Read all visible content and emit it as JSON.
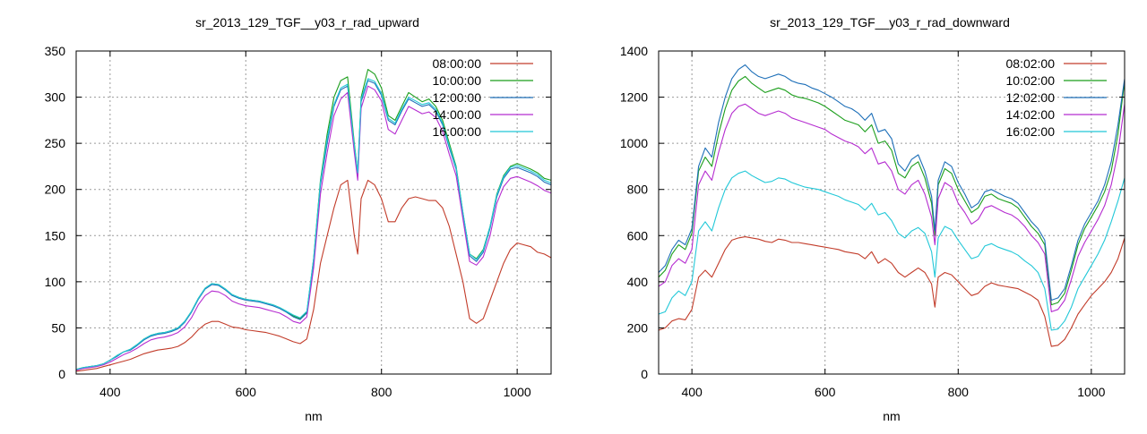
{
  "chart_data": [
    {
      "type": "line",
      "title": "sr_2013_129_TGF__y03_r_rad_upward",
      "xlabel": "nm",
      "ylabel": "",
      "xlim": [
        350,
        1050
      ],
      "ylim": [
        0,
        350
      ],
      "xticks": [
        400,
        600,
        800,
        1000
      ],
      "yticks": [
        0,
        50,
        100,
        150,
        200,
        250,
        300,
        350
      ],
      "grid": true,
      "legend": "top-right",
      "x": [
        350,
        360,
        370,
        380,
        390,
        400,
        410,
        420,
        430,
        440,
        450,
        460,
        470,
        480,
        490,
        500,
        510,
        520,
        530,
        540,
        550,
        560,
        570,
        580,
        590,
        600,
        610,
        620,
        630,
        640,
        650,
        660,
        670,
        680,
        690,
        700,
        710,
        720,
        730,
        740,
        750,
        760,
        765,
        770,
        780,
        790,
        800,
        810,
        820,
        830,
        840,
        850,
        860,
        870,
        880,
        890,
        900,
        910,
        920,
        930,
        940,
        950,
        960,
        970,
        980,
        990,
        1000,
        1010,
        1020,
        1030,
        1040,
        1050
      ],
      "series": [
        {
          "name": "08:00:00",
          "color": "#c23c2a",
          "values": [
            3,
            4,
            5,
            6,
            8,
            10,
            12,
            14,
            16,
            19,
            22,
            24,
            26,
            27,
            28,
            30,
            34,
            40,
            48,
            54,
            57,
            57,
            54,
            51,
            50,
            48,
            47,
            46,
            45,
            43,
            41,
            38,
            35,
            33,
            38,
            70,
            120,
            150,
            180,
            205,
            210,
            150,
            130,
            190,
            210,
            205,
            190,
            165,
            165,
            180,
            190,
            192,
            190,
            188,
            188,
            180,
            160,
            130,
            100,
            60,
            55,
            60,
            80,
            100,
            120,
            135,
            142,
            140,
            138,
            132,
            130,
            126
          ]
        },
        {
          "name": "10:00:00",
          "color": "#1b9e1b",
          "values": [
            5,
            7,
            8,
            9,
            11,
            15,
            20,
            24,
            27,
            32,
            38,
            42,
            44,
            45,
            47,
            50,
            57,
            68,
            82,
            93,
            98,
            97,
            92,
            86,
            83,
            81,
            80,
            79,
            77,
            75,
            72,
            68,
            63,
            60,
            67,
            125,
            210,
            260,
            300,
            318,
            322,
            250,
            218,
            300,
            330,
            325,
            310,
            280,
            275,
            290,
            305,
            300,
            295,
            298,
            290,
            275,
            250,
            225,
            175,
            130,
            125,
            135,
            160,
            195,
            215,
            225,
            228,
            225,
            222,
            218,
            212,
            210
          ]
        },
        {
          "name": "12:00:00",
          "color": "#1d6fb8",
          "values": [
            5,
            6,
            8,
            9,
            11,
            15,
            19,
            24,
            26,
            31,
            37,
            41,
            43,
            44,
            46,
            49,
            56,
            67,
            81,
            92,
            97,
            96,
            91,
            85,
            82,
            80,
            79,
            78,
            76,
            74,
            71,
            67,
            62,
            59,
            66,
            122,
            205,
            250,
            290,
            308,
            312,
            245,
            215,
            295,
            318,
            315,
            302,
            275,
            270,
            285,
            298,
            294,
            290,
            292,
            285,
            270,
            245,
            222,
            173,
            128,
            122,
            132,
            158,
            192,
            212,
            222,
            224,
            221,
            218,
            214,
            208,
            205
          ]
        },
        {
          "name": "14:00:00",
          "color": "#b52cd0",
          "values": [
            4,
            6,
            7,
            8,
            10,
            13,
            17,
            21,
            24,
            28,
            33,
            37,
            39,
            40,
            42,
            45,
            51,
            61,
            75,
            85,
            90,
            89,
            85,
            79,
            76,
            74,
            73,
            72,
            70,
            68,
            66,
            62,
            57,
            55,
            62,
            115,
            195,
            240,
            280,
            298,
            305,
            240,
            210,
            288,
            312,
            308,
            296,
            265,
            260,
            275,
            290,
            286,
            282,
            284,
            278,
            263,
            238,
            215,
            168,
            122,
            118,
            127,
            150,
            185,
            203,
            212,
            214,
            211,
            208,
            204,
            199,
            196
          ]
        },
        {
          "name": "16:00:00",
          "color": "#22c8d8",
          "values": [
            5,
            7,
            8,
            9,
            11,
            15,
            20,
            24,
            27,
            32,
            38,
            42,
            44,
            45,
            47,
            50,
            57,
            68,
            82,
            93,
            98,
            97,
            92,
            86,
            83,
            81,
            80,
            79,
            77,
            75,
            72,
            68,
            64,
            61,
            68,
            125,
            208,
            255,
            292,
            310,
            314,
            248,
            218,
            298,
            320,
            317,
            304,
            277,
            272,
            287,
            300,
            296,
            292,
            294,
            287,
            272,
            247,
            224,
            175,
            130,
            124,
            134,
            160,
            194,
            214,
            224,
            226,
            223,
            220,
            216,
            210,
            207
          ]
        }
      ]
    },
    {
      "type": "line",
      "title": "sr_2013_129_TGF__y03_r_rad_downward",
      "xlabel": "nm",
      "ylabel": "",
      "xlim": [
        350,
        1050
      ],
      "ylim": [
        0,
        1400
      ],
      "xticks": [
        400,
        600,
        800,
        1000
      ],
      "yticks": [
        0,
        200,
        400,
        600,
        800,
        1000,
        1200,
        1400
      ],
      "grid": true,
      "legend": "top-right",
      "x": [
        350,
        360,
        370,
        380,
        390,
        400,
        410,
        420,
        430,
        440,
        450,
        460,
        470,
        480,
        490,
        500,
        510,
        520,
        530,
        540,
        550,
        560,
        570,
        580,
        590,
        600,
        610,
        620,
        630,
        640,
        650,
        660,
        670,
        680,
        690,
        700,
        710,
        720,
        730,
        740,
        750,
        760,
        765,
        770,
        780,
        790,
        800,
        810,
        820,
        830,
        840,
        850,
        860,
        870,
        880,
        890,
        900,
        910,
        920,
        930,
        940,
        950,
        960,
        970,
        980,
        990,
        1000,
        1010,
        1020,
        1030,
        1040,
        1050
      ],
      "series": [
        {
          "name": "08:02:00",
          "color": "#c23c2a",
          "values": [
            190,
            200,
            230,
            240,
            235,
            280,
            420,
            450,
            420,
            480,
            540,
            580,
            590,
            595,
            590,
            585,
            575,
            570,
            585,
            580,
            570,
            570,
            565,
            560,
            555,
            550,
            545,
            540,
            530,
            525,
            520,
            500,
            530,
            480,
            500,
            480,
            440,
            420,
            440,
            460,
            440,
            390,
            290,
            420,
            440,
            430,
            400,
            370,
            340,
            350,
            380,
            395,
            385,
            380,
            375,
            370,
            355,
            340,
            320,
            250,
            120,
            125,
            150,
            200,
            260,
            300,
            340,
            370,
            400,
            440,
            500,
            590
          ]
        },
        {
          "name": "10:02:00",
          "color": "#1b9e1b",
          "values": [
            420,
            450,
            520,
            560,
            540,
            610,
            880,
            940,
            900,
            1040,
            1150,
            1230,
            1270,
            1290,
            1260,
            1240,
            1220,
            1230,
            1240,
            1230,
            1210,
            1200,
            1195,
            1185,
            1175,
            1160,
            1140,
            1120,
            1100,
            1090,
            1080,
            1050,
            1080,
            1000,
            1010,
            970,
            870,
            850,
            900,
            920,
            850,
            740,
            600,
            820,
            890,
            870,
            800,
            750,
            700,
            720,
            770,
            780,
            760,
            750,
            740,
            720,
            680,
            640,
            610,
            560,
            300,
            310,
            350,
            450,
            560,
            630,
            680,
            730,
            790,
            880,
            1040,
            1270
          ]
        },
        {
          "name": "12:02:00",
          "color": "#1d6fb8",
          "values": [
            440,
            470,
            540,
            580,
            560,
            630,
            900,
            980,
            940,
            1090,
            1200,
            1280,
            1320,
            1340,
            1310,
            1290,
            1280,
            1290,
            1300,
            1290,
            1270,
            1260,
            1255,
            1240,
            1230,
            1215,
            1200,
            1180,
            1160,
            1150,
            1130,
            1100,
            1130,
            1050,
            1060,
            1020,
            910,
            880,
            930,
            950,
            880,
            770,
            620,
            840,
            920,
            900,
            830,
            780,
            720,
            740,
            790,
            800,
            785,
            770,
            760,
            740,
            700,
            660,
            630,
            580,
            320,
            330,
            370,
            470,
            580,
            650,
            700,
            750,
            820,
            920,
            1080,
            1280
          ]
        },
        {
          "name": "14:02:00",
          "color": "#b52cd0",
          "values": [
            380,
            400,
            470,
            500,
            480,
            540,
            820,
            880,
            840,
            960,
            1060,
            1130,
            1160,
            1170,
            1150,
            1130,
            1120,
            1130,
            1140,
            1130,
            1110,
            1100,
            1090,
            1080,
            1070,
            1060,
            1040,
            1025,
            1010,
            1000,
            985,
            955,
            980,
            910,
            920,
            880,
            800,
            780,
            820,
            840,
            780,
            680,
            560,
            760,
            830,
            810,
            740,
            700,
            650,
            670,
            720,
            730,
            715,
            700,
            690,
            670,
            640,
            600,
            570,
            520,
            270,
            280,
            320,
            410,
            510,
            570,
            620,
            670,
            730,
            820,
            960,
            1170
          ]
        },
        {
          "name": "16:02:00",
          "color": "#22c8d8",
          "values": [
            260,
            270,
            330,
            360,
            340,
            400,
            620,
            660,
            620,
            720,
            800,
            850,
            870,
            880,
            860,
            845,
            830,
            835,
            850,
            845,
            830,
            820,
            810,
            805,
            800,
            790,
            780,
            770,
            755,
            745,
            735,
            710,
            740,
            690,
            700,
            665,
            610,
            590,
            620,
            635,
            610,
            530,
            420,
            590,
            640,
            625,
            580,
            540,
            500,
            510,
            555,
            565,
            550,
            540,
            530,
            515,
            490,
            470,
            440,
            370,
            190,
            195,
            230,
            290,
            370,
            420,
            470,
            520,
            580,
            660,
            750,
            850
          ]
        }
      ]
    }
  ]
}
